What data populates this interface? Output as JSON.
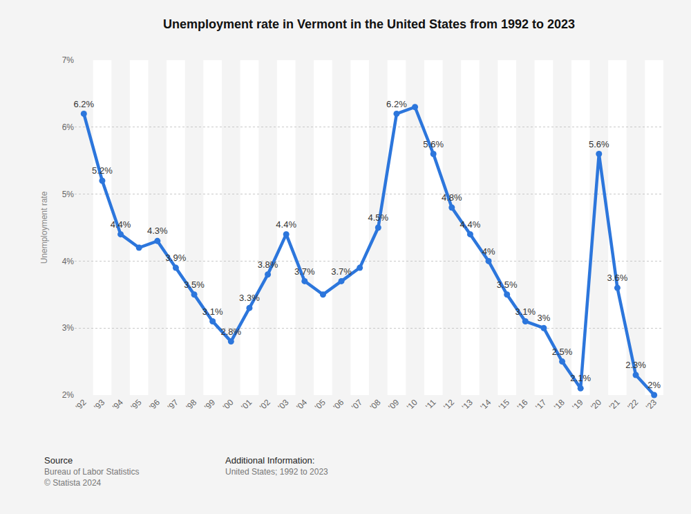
{
  "chart_data": {
    "type": "line",
    "title": "Unemployment rate in Vermont in the United States from 1992 to 2023",
    "y_label": "Unemployment rate",
    "categories": [
      "'92",
      "'93",
      "'94",
      "'95",
      "'96",
      "'97",
      "'98",
      "'99",
      "'00",
      "'01",
      "'02",
      "'03",
      "'04",
      "'05",
      "'06",
      "'07",
      "'08",
      "'09",
      "'10",
      "'11",
      "'12",
      "'13",
      "'14",
      "'15",
      "'16",
      "'17",
      "'18",
      "'19",
      "'20",
      "'21",
      "'22",
      "'23"
    ],
    "values": [
      6.2,
      5.2,
      4.4,
      4.2,
      4.3,
      3.9,
      3.5,
      3.1,
      2.8,
      3.3,
      3.8,
      4.4,
      3.7,
      3.5,
      3.7,
      3.9,
      4.5,
      6.2,
      6.3,
      5.6,
      4.8,
      4.4,
      4,
      3.5,
      3.1,
      3,
      2.5,
      2.1,
      5.6,
      3.6,
      2.3,
      2
    ],
    "value_labels": [
      "6.2%",
      "5.2%",
      "4.4%",
      null,
      "4.3%",
      "3.9%",
      "3.5%",
      "3.1%",
      "2.8%",
      "3.3%",
      "3.8%",
      "4.4%",
      "3.7%",
      null,
      "3.7%",
      null,
      "4.5%",
      "6.2%",
      null,
      "5.6%",
      "4.8%",
      "4.4%",
      "4%",
      "3.5%",
      "3.1%",
      "3%",
      "2.5%",
      "2.1%",
      "5.6%",
      "3.6%",
      "2.3%",
      "2%"
    ],
    "data_labels": true,
    "color": "#2c76dc",
    "marker": "circle",
    "line_style": "solid",
    "grid": true,
    "ylim": [
      2,
      7
    ],
    "yticks": [
      {
        "value": 2,
        "label": "2%"
      },
      {
        "value": 3,
        "label": "3%"
      },
      {
        "value": 4,
        "label": "4%"
      },
      {
        "value": 5,
        "label": "5%"
      },
      {
        "value": 6,
        "label": "6%"
      },
      {
        "value": 7,
        "label": "7%"
      }
    ],
    "footer": {
      "source_heading": "Source",
      "source": "Bureau of Labor Statistics",
      "copyright": "© Statista 2024",
      "info_heading": "Additional Information:",
      "info": "United States; 1992 to 2023"
    }
  }
}
